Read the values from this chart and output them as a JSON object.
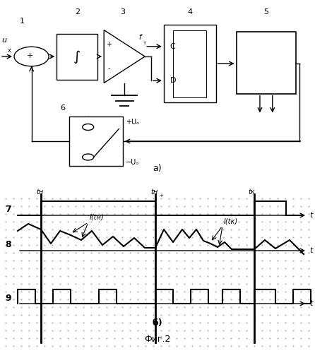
{
  "fig_width": 4.46,
  "fig_height": 5.0,
  "dpi": 100,
  "title": "Фиг.2",
  "label_a": "а)",
  "label_b": "б)"
}
